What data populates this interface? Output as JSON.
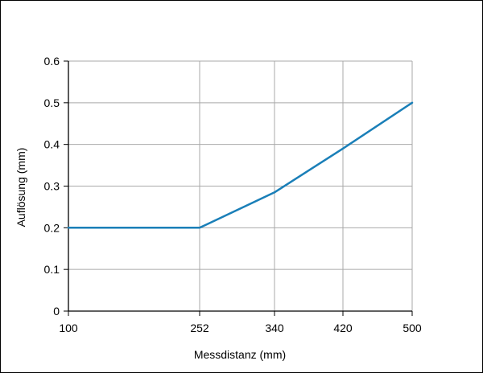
{
  "chart_data": {
    "type": "line",
    "xlabel": "Messdistanz (mm)",
    "ylabel": "Auflösung (mm)",
    "x_ticks": [
      100,
      252,
      340,
      420,
      500
    ],
    "y_ticks": [
      0,
      0.1,
      0.2,
      0.3,
      0.4,
      0.5,
      0.6
    ],
    "y_tick_labels": [
      "0",
      "0.1",
      "0.2",
      "0.3",
      "0.4",
      "0.5",
      "0.6"
    ],
    "xlim": [
      100,
      500
    ],
    "ylim": [
      0,
      0.6
    ],
    "grid": true,
    "x_scale": "nonuniform-categorical",
    "series": [
      {
        "color": "#1a7fb8",
        "x": [
          100,
          252,
          340,
          420,
          500
        ],
        "y": [
          0.2,
          0.2,
          0.285,
          0.39,
          0.5
        ]
      }
    ]
  }
}
